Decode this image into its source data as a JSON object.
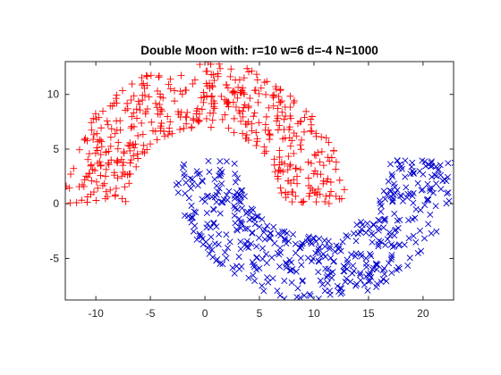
{
  "chart_data": {
    "type": "scatter",
    "title": "Double Moon with: r=10 w=6 d=-4 N=1000",
    "xlabel": "",
    "ylabel": "",
    "xlim": [
      -12.8,
      22.8
    ],
    "ylim": [
      -8.8,
      13
    ],
    "x_ticks": [
      -10,
      -5,
      0,
      5,
      10,
      15,
      20
    ],
    "x_tick_labels": [
      "-10",
      "-5",
      "0",
      "5",
      "10",
      "15",
      "20"
    ],
    "y_ticks": [
      -5,
      0,
      5,
      10
    ],
    "y_tick_labels": [
      "-5",
      "0",
      "5",
      "10"
    ],
    "grid": false,
    "legend": "none",
    "moon_parameters": {
      "r": 10,
      "w": 6,
      "d": -4,
      "N": 1000
    },
    "series": [
      {
        "marker": "+",
        "color": "#ff0000",
        "count": 500,
        "shape": "upper half-annulus centered at (0, 0), radius 7 to 13, y >= 0",
        "sample_points": [
          [
            -12.5,
            0.5
          ],
          [
            -12,
            3
          ],
          [
            -11,
            6
          ],
          [
            -9,
            8.5
          ],
          [
            -7,
            10.5
          ],
          [
            -5,
            11.8
          ],
          [
            -3,
            12.3
          ],
          [
            0,
            12.8
          ],
          [
            3,
            12.4
          ],
          [
            5,
            11.7
          ],
          [
            7,
            10.5
          ],
          [
            9,
            8.5
          ],
          [
            11,
            6
          ],
          [
            12.3,
            3
          ],
          [
            12.8,
            0.4
          ],
          [
            -7.5,
            0.5
          ],
          [
            -6.5,
            3.5
          ],
          [
            -5,
            5.5
          ],
          [
            -2.5,
            7.5
          ],
          [
            0,
            7.5
          ],
          [
            2.5,
            7.5
          ],
          [
            5,
            5.5
          ],
          [
            6.5,
            3.5
          ],
          [
            7.3,
            0.5
          ],
          [
            -10,
            3
          ],
          [
            -8,
            6
          ],
          [
            -4,
            9
          ],
          [
            0,
            10
          ],
          [
            4,
            9
          ],
          [
            8,
            6
          ],
          [
            10,
            3
          ]
        ]
      },
      {
        "marker": "x",
        "color": "#0000cc",
        "count": 500,
        "shape": "lower half-annulus centered at (10, 4), radius 7 to 13, y <= 4",
        "sample_points": [
          [
            -2.5,
            3.5
          ],
          [
            -1.8,
            1
          ],
          [
            -0.5,
            -2
          ],
          [
            1.5,
            -4.5
          ],
          [
            3.5,
            -6.5
          ],
          [
            5.5,
            -7.8
          ],
          [
            8,
            -8.6
          ],
          [
            10,
            -8.8
          ],
          [
            12,
            -8.5
          ],
          [
            14.5,
            -7.8
          ],
          [
            16.5,
            -6.5
          ],
          [
            18.5,
            -4.5
          ],
          [
            20.5,
            -2
          ],
          [
            22,
            1
          ],
          [
            22.5,
            3.5
          ],
          [
            3,
            3.5
          ],
          [
            3.6,
            1.5
          ],
          [
            5,
            -0.5
          ],
          [
            7.5,
            -2.5
          ],
          [
            10,
            -3
          ],
          [
            12.5,
            -2.5
          ],
          [
            15,
            -0.5
          ],
          [
            16.4,
            1.5
          ],
          [
            17,
            3.5
          ],
          [
            0,
            0
          ],
          [
            4,
            -4
          ],
          [
            10,
            -6
          ],
          [
            16,
            -4
          ],
          [
            20,
            0
          ]
        ]
      }
    ]
  }
}
